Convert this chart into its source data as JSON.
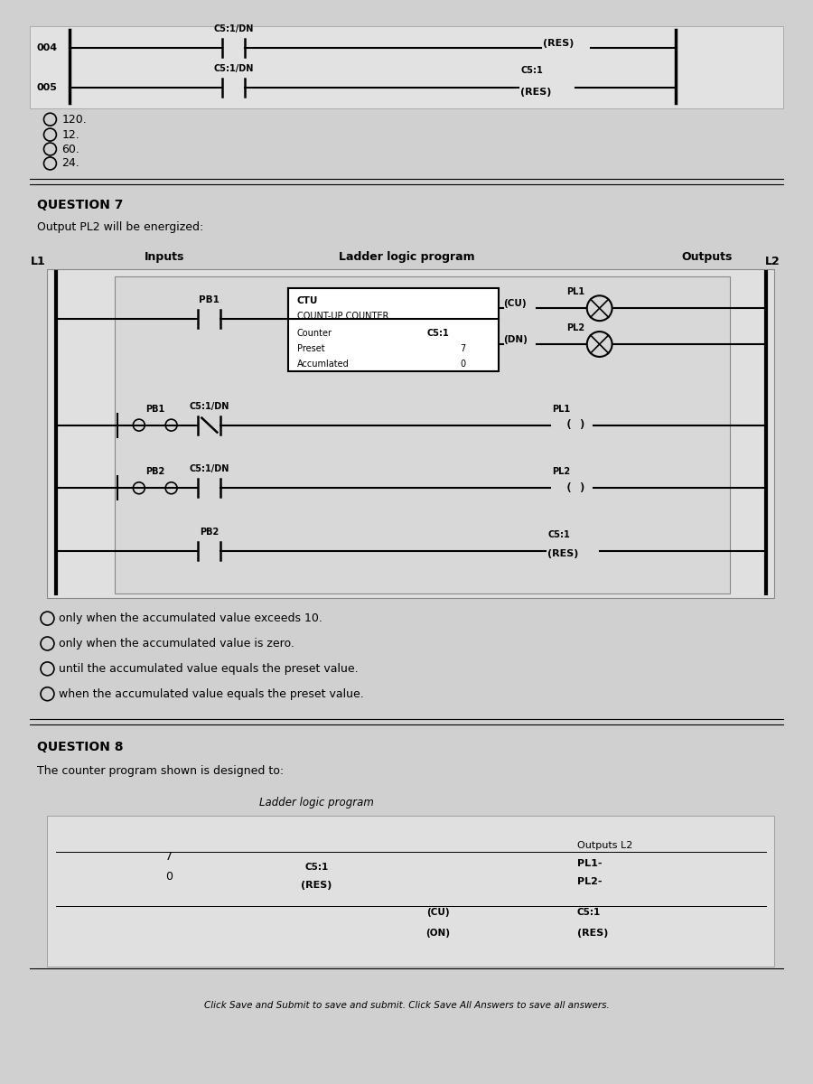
{
  "bg_color": "#d0d0d0",
  "top_section": {
    "rung_labels": [
      "004",
      "005"
    ],
    "contact_label": "C5:1/DN",
    "coil_label_004": "(RES)",
    "coil_label_005_top": "C5:1",
    "coil_label_005_bot": "(RES)",
    "radio_options": [
      "120.",
      "12.",
      "60.",
      "24."
    ]
  },
  "question7": {
    "title": "QUESTION 7",
    "subtitle": "Output PL2 will be energized:",
    "inputs_label": "Inputs",
    "ladder_label": "Ladder logic program",
    "outputs_label": "Outputs",
    "L1_label": "L1",
    "L2_label": "L2",
    "ctu_title": "CTU",
    "ctu_subtitle": "COUNT-UP COUNTER",
    "ctu_rows": [
      "Counter",
      "Preset",
      "Accumlated"
    ],
    "ctu_values": [
      "C5:1",
      "7",
      "0"
    ],
    "cu_label": "(CU)",
    "dn_label": "(DN)",
    "rung1_contact": "PB1",
    "rung2_contact1": "PB1",
    "rung2_contact2": "C5:1/DN",
    "rung2_output": "PL1",
    "rung3_contact1": "PB2",
    "rung3_contact2": "C5:1/DN",
    "rung3_output": "PL2",
    "rung4_contact": "PB2",
    "rung4_output_top": "C5:1",
    "rung4_output_bot": "(RES)",
    "pl1_label": "PL1",
    "pl2_label": "PL2",
    "answers": [
      "only when the accumulated value exceeds 10.",
      "only when the accumulated value is zero.",
      "until the accumulated value equals the preset value.",
      "when the accumulated value equals the preset value."
    ]
  },
  "question8": {
    "title": "QUESTION 8",
    "subtitle": "The counter program shown is designed to:",
    "ladder_label": "Ladder logic program",
    "bottom_text": "Click Save and Submit to save and submit. Click Save All Answers to save all answers."
  }
}
